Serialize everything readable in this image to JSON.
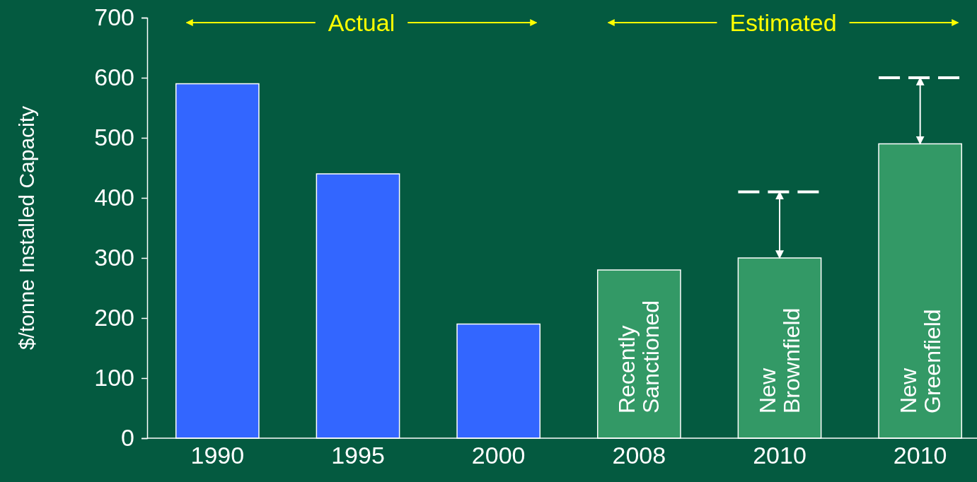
{
  "chart_data": {
    "type": "bar",
    "categories": [
      "1990",
      "1995",
      "2000",
      "2008",
      "2010",
      "2010"
    ],
    "values": [
      590,
      440,
      190,
      280,
      300,
      490
    ],
    "colors": [
      "#3366ff",
      "#3366ff",
      "#3366ff",
      "#339966",
      "#339966",
      "#339966"
    ],
    "errors": [
      null,
      null,
      null,
      null,
      [
        300,
        410
      ],
      [
        490,
        600
      ]
    ],
    "ylabel": "$/tonne Installed Capacity",
    "ylim": [
      0,
      700
    ],
    "yticks": [
      0,
      100,
      200,
      300,
      400,
      500,
      600,
      700
    ],
    "grid": false,
    "annotations": [
      "Actual",
      "Estimated",
      "Recently\nSanctioned",
      "New\nBrownfield",
      "New\nGreenfield"
    ]
  }
}
